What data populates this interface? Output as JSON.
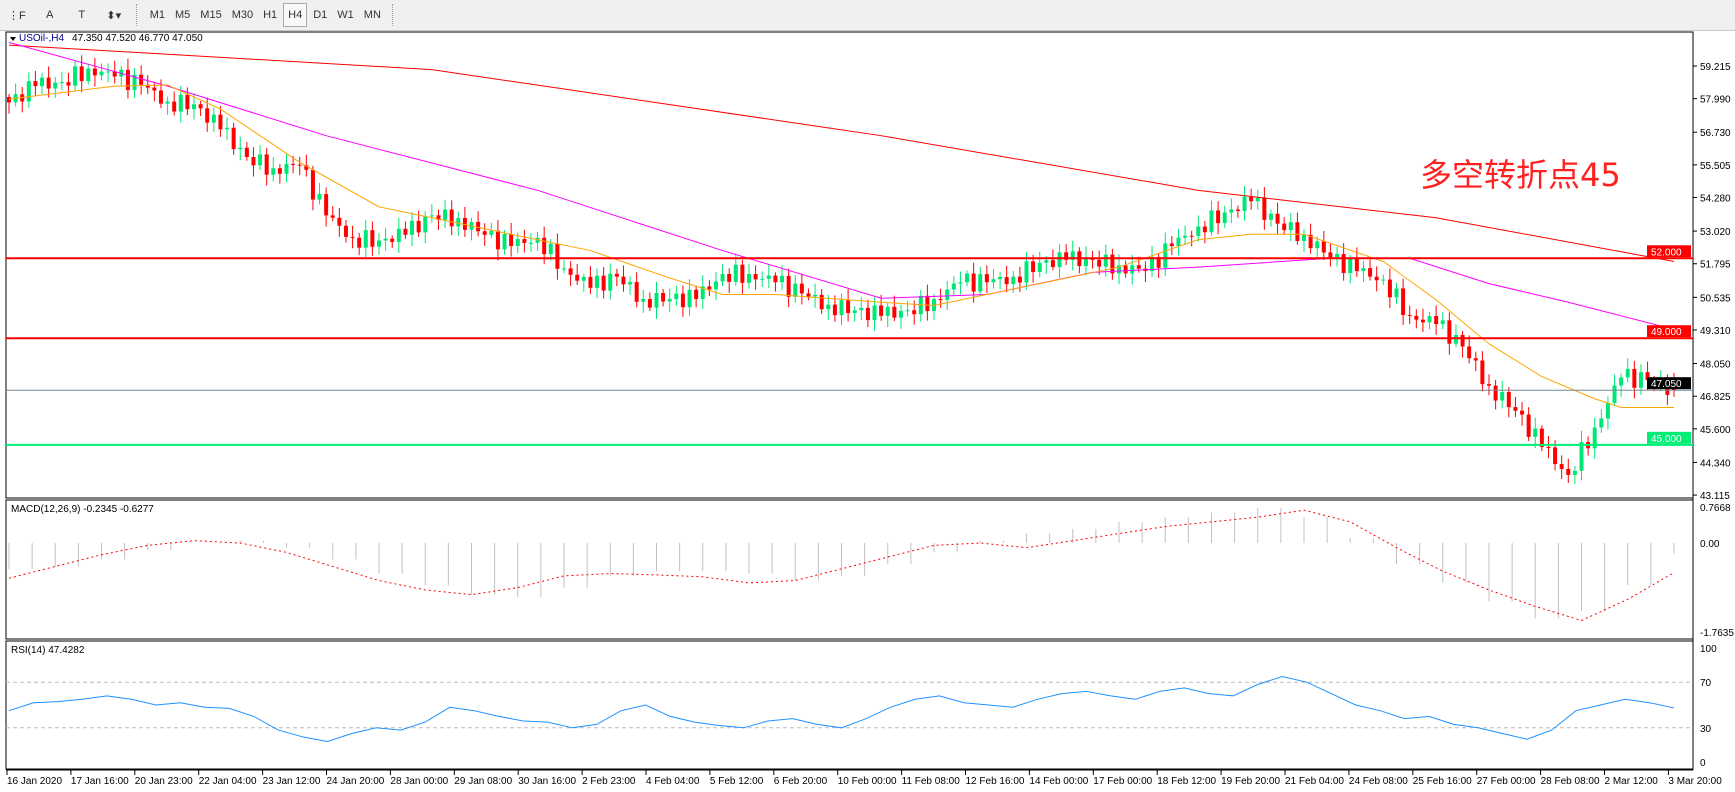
{
  "toolbar": {
    "tools": [
      {
        "name": "fibonacci-fan-icon",
        "glyph": "⋮F"
      },
      {
        "name": "text-icon",
        "glyph": "A"
      },
      {
        "name": "text-label-icon",
        "glyph": "T"
      },
      {
        "name": "arrows-icon",
        "glyph": "⬍▾"
      }
    ],
    "timeframes": [
      "M1",
      "M5",
      "M15",
      "M30",
      "H1",
      "H4",
      "D1",
      "W1",
      "MN"
    ],
    "active_timeframe": "H4"
  },
  "header": {
    "symbol_label": "USOil-,H4",
    "ohlc": "47.350 47.520 46.770 47.050"
  },
  "annotation": "多空转折点45",
  "colors": {
    "bull": "#00e676",
    "bear": "#ff0000",
    "ma_slow": "#ff0000",
    "ma_mid": "#ff00ff",
    "ma_fast": "#ffa500",
    "macd_hist": "#c0c0c0",
    "macd_signal": "#ff0000",
    "rsi": "#1e90ff",
    "level_52": "#ff0000",
    "level_49": "#ff0000",
    "level_45": "#00ee76",
    "current_price": "#778899"
  },
  "chart_data": [
    {
      "type": "candlestick",
      "title": "USOil-,H4",
      "price_axis_ticks": [
        "59.215",
        "57.990",
        "56.730",
        "55.505",
        "54.280",
        "53.020",
        "51.795",
        "50.535",
        "49.310",
        "48.050",
        "46.825",
        "45.600",
        "44.340",
        "43.115"
      ],
      "ylim": [
        43.115,
        60.4
      ],
      "time_axis_ticks": [
        "16 Jan 2020",
        "17 Jan 16:00",
        "20 Jan 23:00",
        "22 Jan 04:00",
        "23 Jan 12:00",
        "24 Jan 20:00",
        "28 Jan 00:00",
        "29 Jan 08:00",
        "30 Jan 16:00",
        "2 Feb 23:00",
        "4 Feb 04:00",
        "5 Feb 12:00",
        "6 Feb 20:00",
        "10 Feb 00:00",
        "11 Feb 08:00",
        "12 Feb 16:00",
        "14 Feb 00:00",
        "17 Feb 00:00",
        "18 Feb 12:00",
        "19 Feb 20:00",
        "21 Feb 04:00",
        "24 Feb 08:00",
        "25 Feb 16:00",
        "27 Feb 00:00",
        "28 Feb 08:00",
        "2 Mar 12:00",
        "3 Mar 20:00"
      ],
      "close_samples": [
        57.85,
        58.46,
        58.61,
        59.12,
        58.82,
        58.51,
        57.88,
        57.78,
        56.84,
        55.8,
        55.38,
        55.49,
        53.61,
        52.77,
        52.67,
        52.88,
        53.61,
        53.51,
        52.88,
        52.46,
        52.77,
        51.62,
        50.89,
        51.31,
        50.47,
        50.47,
        50.47,
        51.41,
        51.41,
        51.1,
        50.68,
        50.26,
        50.05,
        49.84,
        50.05,
        50.47,
        51.1,
        51.1,
        51.31,
        51.83,
        51.94,
        51.94,
        51.73,
        51.52,
        52.46,
        53.19,
        53.72,
        54.14,
        53.3,
        52.88,
        52.04,
        51.52,
        51.2,
        49.84,
        49.53,
        48.69,
        47.22,
        46.28,
        44.92,
        43.87,
        45.65,
        47.53,
        47.43,
        47.05
      ],
      "moving_averages": [
        {
          "color": "#ff0000",
          "points": [
            [
              0,
              60.0
            ],
            [
              16,
              59.08
            ],
            [
              33,
              56.6
            ],
            [
              45,
              54.55
            ],
            [
              54,
              53.52
            ],
            [
              63,
              51.88
            ]
          ]
        },
        {
          "color": "#ff00ff",
          "points": [
            [
              0,
              60.1
            ],
            [
              6,
              58.46
            ],
            [
              12,
              56.6
            ],
            [
              20,
              54.55
            ],
            [
              27,
              52.29
            ],
            [
              33,
              50.5
            ],
            [
              37,
              50.64
            ],
            [
              41,
              51.47
            ],
            [
              45,
              51.67
            ],
            [
              50,
              52.0
            ],
            [
              53,
              52.0
            ],
            [
              56,
              51.05
            ],
            [
              59,
              50.35
            ],
            [
              63,
              49.33
            ]
          ]
        },
        {
          "color": "#ffa500",
          "points": [
            [
              0,
              57.97
            ],
            [
              4,
              58.46
            ],
            [
              6,
              58.5
            ],
            [
              8,
              57.6
            ],
            [
              11,
              55.6
            ],
            [
              14,
              53.93
            ],
            [
              16,
              53.52
            ],
            [
              19,
              52.9
            ],
            [
              22,
              52.29
            ],
            [
              25,
              51.26
            ],
            [
              27,
              50.64
            ],
            [
              29,
              50.64
            ],
            [
              33,
              50.35
            ],
            [
              35,
              50.23
            ],
            [
              37,
              50.64
            ],
            [
              39,
              51.05
            ],
            [
              42,
              51.67
            ],
            [
              45,
              52.7
            ],
            [
              47,
              52.9
            ],
            [
              49,
              52.9
            ],
            [
              52,
              51.88
            ],
            [
              54,
              50.44
            ],
            [
              56,
              48.79
            ],
            [
              58,
              47.56
            ],
            [
              60,
              46.73
            ],
            [
              61,
              46.4
            ],
            [
              63,
              46.4
            ]
          ]
        }
      ],
      "horizontal_levels": [
        {
          "label": "52.000",
          "value": 52.0,
          "color": "#ff0000"
        },
        {
          "label": "49.000",
          "value": 49.0,
          "color": "#ff0000"
        },
        {
          "label": "45.000",
          "value": 45.0,
          "color": "#00ee76"
        }
      ],
      "current_price": {
        "label": "47.050",
        "value": 47.05
      }
    },
    {
      "type": "bar",
      "title": "MACD(12,26,9) -0.2345 -0.6277",
      "axis_ticks": [
        "0.7668",
        "0.00",
        "-1.7635"
      ],
      "ylim": [
        -1.7635,
        0.7668
      ],
      "histogram": [
        -0.55,
        -0.5,
        -0.35,
        -0.15,
        0.0,
        0.05,
        -0.1,
        -0.35,
        -0.65,
        -0.9,
        -1.1,
        -1.15,
        -0.95,
        -0.7,
        -0.6,
        -0.6,
        -0.65,
        -0.8,
        -0.7,
        -0.45,
        -0.2,
        0.05,
        0.2,
        0.3,
        0.45,
        0.55,
        0.65,
        0.75,
        0.55,
        0.1,
        -0.45,
        -0.85,
        -1.25,
        -1.6,
        -1.45,
        -0.9,
        -0.23
      ],
      "signal": [
        -0.75,
        -0.5,
        -0.25,
        -0.05,
        0.05,
        0.0,
        -0.2,
        -0.5,
        -0.8,
        -1.0,
        -1.1,
        -0.95,
        -0.7,
        -0.65,
        -0.68,
        -0.72,
        -0.85,
        -0.8,
        -0.55,
        -0.3,
        -0.05,
        0.0,
        -0.1,
        0.05,
        0.2,
        0.35,
        0.45,
        0.55,
        0.7,
        0.45,
        -0.1,
        -0.6,
        -1.0,
        -1.35,
        -1.65,
        -1.2,
        -0.63
      ]
    },
    {
      "type": "line",
      "title": "RSI(14) 47.4282",
      "axis_ticks": [
        "100",
        "70",
        "30",
        "0"
      ],
      "ylim": [
        0,
        100
      ],
      "levels": [
        70,
        30
      ],
      "values": [
        45,
        52,
        53,
        55,
        58,
        55,
        50,
        52,
        48,
        47,
        40,
        28,
        22,
        18,
        25,
        30,
        28,
        35,
        48,
        45,
        40,
        36,
        35,
        30,
        33,
        45,
        50,
        40,
        35,
        32,
        30,
        36,
        38,
        33,
        30,
        38,
        48,
        55,
        58,
        52,
        50,
        48,
        55,
        60,
        62,
        58,
        55,
        62,
        65,
        60,
        58,
        68,
        75,
        70,
        60,
        50,
        45,
        38,
        40,
        33,
        30,
        25,
        20,
        28,
        45,
        50,
        55,
        52,
        47.43
      ]
    }
  ]
}
